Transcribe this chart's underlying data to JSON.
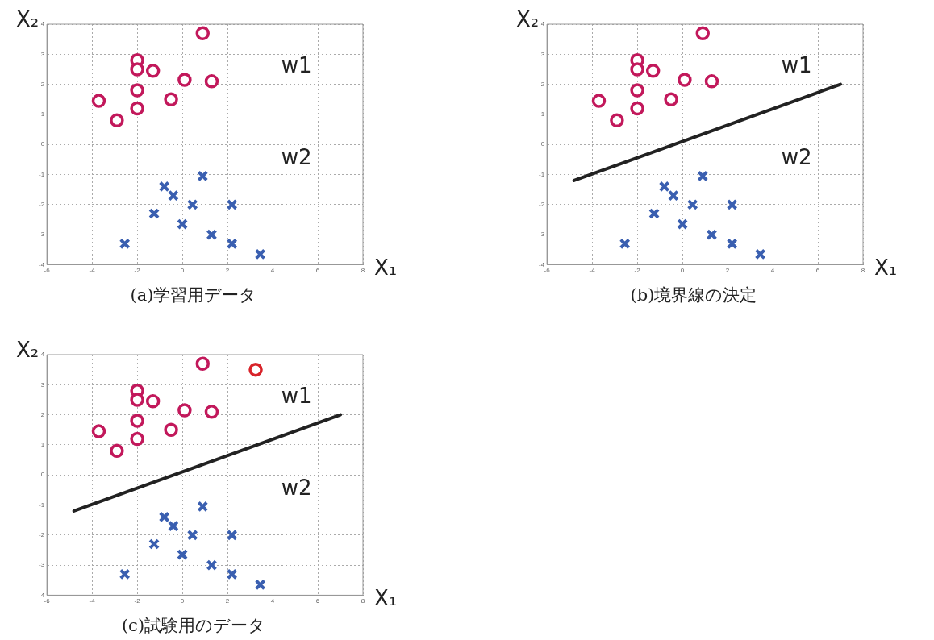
{
  "chart_data": [
    {
      "type": "scatter",
      "title": "(a)学習用データ",
      "xlabel": "X₁",
      "ylabel": "X₂",
      "xlim": [
        -6,
        8
      ],
      "ylim": [
        -4,
        4
      ],
      "xticks": [
        -6,
        -4,
        -2,
        0,
        2,
        4,
        6,
        8
      ],
      "yticks": [
        -4,
        -3,
        -2,
        -1,
        0,
        1,
        2,
        3,
        4
      ],
      "grid": true,
      "legend": false,
      "series": [
        {
          "color": "#c2185b",
          "marker": "circle",
          "x": [
            0.9,
            -2,
            -2,
            -1.3,
            0.1,
            1.3,
            -2,
            -3.7,
            -0.5,
            -2,
            -2.9
          ],
          "values": [
            3.7,
            2.8,
            2.5,
            2.45,
            2.15,
            2.1,
            1.8,
            1.45,
            1.5,
            1.2,
            0.8
          ]
        },
        {
          "color": "#3a5fb0",
          "marker": "cross",
          "x": [
            0.9,
            -0.8,
            -0.4,
            0.45,
            2.2,
            -1.25,
            0,
            1.3,
            -2.55,
            2.2,
            3.45
          ],
          "values": [
            -1.05,
            -1.4,
            -1.7,
            -2,
            -2,
            -2.3,
            -2.65,
            -3,
            -3.3,
            -3.3,
            -3.65
          ]
        }
      ],
      "annotations": [
        "w1",
        "w2"
      ]
    },
    {
      "type": "scatter",
      "title": "(b)境界線の決定",
      "xlabel": "X₁",
      "ylabel": "X₂",
      "xlim": [
        -6,
        8
      ],
      "ylim": [
        -4,
        4
      ],
      "xticks": [
        -6,
        -4,
        -2,
        0,
        2,
        4,
        6,
        8
      ],
      "yticks": [
        -4,
        -3,
        -2,
        -1,
        0,
        1,
        2,
        3,
        4
      ],
      "grid": true,
      "legend": false,
      "series": [
        {
          "color": "#c2185b",
          "marker": "circle",
          "x": [
            0.9,
            -2,
            -2,
            -1.3,
            0.1,
            1.3,
            -2,
            -3.7,
            -0.5,
            -2,
            -2.9
          ],
          "values": [
            3.7,
            2.8,
            2.5,
            2.45,
            2.15,
            2.1,
            1.8,
            1.45,
            1.5,
            1.2,
            0.8
          ]
        },
        {
          "color": "#3a5fb0",
          "marker": "cross",
          "x": [
            0.9,
            -0.8,
            -0.4,
            0.45,
            2.2,
            -1.25,
            0,
            1.3,
            -2.55,
            2.2,
            3.45
          ],
          "values": [
            -1.05,
            -1.4,
            -1.7,
            -2,
            -2,
            -2.3,
            -2.65,
            -3,
            -3.3,
            -3.3,
            -3.65
          ]
        },
        {
          "type": "line",
          "color": "#222222",
          "marker": "none",
          "x": [
            -4.8,
            7
          ],
          "values": [
            -1.2,
            2
          ]
        }
      ],
      "annotations": [
        "w1",
        "w2"
      ]
    },
    {
      "type": "scatter",
      "title": "(c)試験用のデータ",
      "xlabel": "X₁",
      "ylabel": "X₂",
      "xlim": [
        -6,
        8
      ],
      "ylim": [
        -4,
        4
      ],
      "xticks": [
        -6,
        -4,
        -2,
        0,
        2,
        4,
        6,
        8
      ],
      "yticks": [
        -4,
        -3,
        -2,
        -1,
        0,
        1,
        2,
        3,
        4
      ],
      "grid": true,
      "legend": false,
      "series": [
        {
          "color": "#c2185b",
          "marker": "circle",
          "x": [
            0.9,
            -2,
            -2,
            -1.3,
            0.1,
            1.3,
            -2,
            -3.7,
            -0.5,
            -2,
            -2.9
          ],
          "values": [
            3.7,
            2.8,
            2.5,
            2.45,
            2.15,
            2.1,
            1.8,
            1.45,
            1.5,
            1.2,
            0.8
          ]
        },
        {
          "color": "#3a5fb0",
          "marker": "cross",
          "x": [
            0.9,
            -0.8,
            -0.4,
            0.45,
            2.2,
            -1.25,
            0,
            1.3,
            -2.55,
            2.2,
            3.45
          ],
          "values": [
            -1.05,
            -1.4,
            -1.7,
            -2,
            -2,
            -2.3,
            -2.65,
            -3,
            -3.3,
            -3.3,
            -3.65
          ]
        },
        {
          "type": "line",
          "color": "#222222",
          "marker": "none",
          "x": [
            -4.8,
            7
          ],
          "values": [
            -1.2,
            2
          ]
        },
        {
          "color": "#d8232a",
          "marker": "circle",
          "x": [
            3.25
          ],
          "values": [
            3.5
          ]
        }
      ],
      "annotations": [
        "w1",
        "w2"
      ]
    }
  ]
}
